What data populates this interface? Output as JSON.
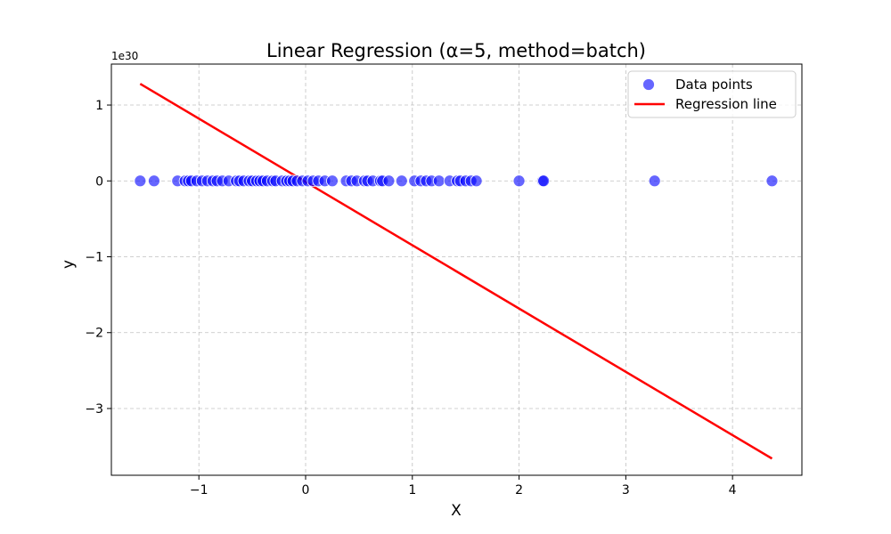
{
  "chart_data": {
    "type": "scatter",
    "title": "Linear Regression (α=5, method=batch)",
    "xlabel": "X",
    "ylabel": "y",
    "y_offset_label": "1e30",
    "xlim": [
      -1.82,
      4.65
    ],
    "ylim": [
      -3.88,
      1.54
    ],
    "xticks": [
      {
        "value": -1,
        "label": "−1"
      },
      {
        "value": 0,
        "label": "0"
      },
      {
        "value": 1,
        "label": "1"
      },
      {
        "value": 2,
        "label": "2"
      },
      {
        "value": 3,
        "label": "3"
      },
      {
        "value": 4,
        "label": "4"
      }
    ],
    "yticks": [
      {
        "value": 1,
        "label": "1"
      },
      {
        "value": 0,
        "label": "0"
      },
      {
        "value": -1,
        "label": "−1"
      },
      {
        "value": -2,
        "label": "−2"
      },
      {
        "value": -3,
        "label": "−3"
      }
    ],
    "grid": true,
    "legend_position": "top-right",
    "series": [
      {
        "name": "Data points",
        "kind": "scatter",
        "color": "#0000ff",
        "points": [
          [
            -1.55,
            0
          ],
          [
            -1.42,
            0
          ],
          [
            -1.2,
            0
          ],
          [
            -1.13,
            0
          ],
          [
            -1.1,
            0
          ],
          [
            -1.07,
            0
          ],
          [
            -1.02,
            0
          ],
          [
            -0.97,
            0
          ],
          [
            -0.92,
            0
          ],
          [
            -0.87,
            0
          ],
          [
            -0.83,
            0
          ],
          [
            -0.78,
            0
          ],
          [
            -0.72,
            0
          ],
          [
            -0.65,
            0
          ],
          [
            -0.62,
            0
          ],
          [
            -0.58,
            0
          ],
          [
            -0.53,
            0
          ],
          [
            -0.5,
            0
          ],
          [
            -0.46,
            0
          ],
          [
            -0.43,
            0
          ],
          [
            -0.4,
            0
          ],
          [
            -0.36,
            0
          ],
          [
            -0.31,
            0
          ],
          [
            -0.28,
            0
          ],
          [
            -0.22,
            0
          ],
          [
            -0.18,
            0
          ],
          [
            -0.15,
            0
          ],
          [
            -0.12,
            0
          ],
          [
            -0.08,
            0
          ],
          [
            -0.03,
            0
          ],
          [
            0.02,
            0
          ],
          [
            0.07,
            0
          ],
          [
            0.12,
            0
          ],
          [
            0.18,
            0
          ],
          [
            0.25,
            0
          ],
          [
            0.38,
            0
          ],
          [
            0.43,
            0
          ],
          [
            0.48,
            0
          ],
          [
            0.55,
            0
          ],
          [
            0.58,
            0
          ],
          [
            0.63,
            0
          ],
          [
            0.7,
            0
          ],
          [
            0.72,
            0
          ],
          [
            0.78,
            0
          ],
          [
            0.9,
            0
          ],
          [
            1.02,
            0
          ],
          [
            1.08,
            0
          ],
          [
            1.13,
            0
          ],
          [
            1.18,
            0
          ],
          [
            1.25,
            0
          ],
          [
            1.35,
            0
          ],
          [
            1.42,
            0
          ],
          [
            1.45,
            0
          ],
          [
            1.5,
            0
          ],
          [
            1.55,
            0
          ],
          [
            1.6,
            0
          ],
          [
            2.0,
            0
          ],
          [
            2.22,
            0
          ],
          [
            2.23,
            0
          ],
          [
            3.27,
            0
          ],
          [
            4.37,
            0
          ]
        ]
      },
      {
        "name": "Regression line",
        "kind": "line",
        "color": "#ff0000",
        "x": [
          -1.55,
          4.37
        ],
        "y": [
          1.28,
          -3.66
        ]
      }
    ]
  }
}
